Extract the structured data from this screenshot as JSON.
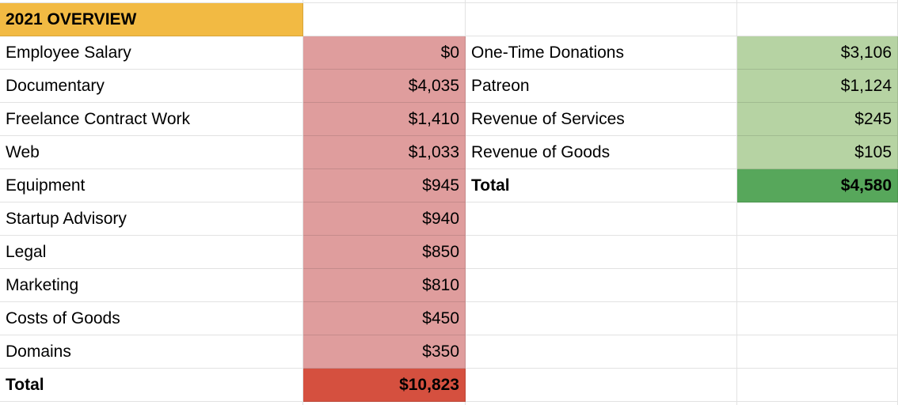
{
  "header": {
    "title": "2021 OVERVIEW"
  },
  "colors": {
    "header_bg": "#F2BA43",
    "expense_bg": "#DF9D9D",
    "expense_total_bg": "#D5503F",
    "income_bg": "#B6D3A3",
    "income_total_bg": "#57A75B",
    "gridline": "#E2E2E2",
    "text": "#000000"
  },
  "expenses": {
    "rows": [
      {
        "label": "Employee Salary",
        "value": "$0"
      },
      {
        "label": "Documentary",
        "value": "$4,035"
      },
      {
        "label": "Freelance Contract Work",
        "value": "$1,410"
      },
      {
        "label": "Web",
        "value": "$1,033"
      },
      {
        "label": "Equipment",
        "value": "$945"
      },
      {
        "label": "Startup Advisory",
        "value": "$940"
      },
      {
        "label": "Legal",
        "value": "$850"
      },
      {
        "label": "Marketing",
        "value": "$810"
      },
      {
        "label": "Costs of Goods",
        "value": "$450"
      },
      {
        "label": "Domains",
        "value": "$350"
      }
    ],
    "total": {
      "label": "Total",
      "value": "$10,823"
    }
  },
  "income": {
    "rows": [
      {
        "label": "One-Time Donations",
        "value": "$3,106"
      },
      {
        "label": "Patreon",
        "value": "$1,124"
      },
      {
        "label": "Revenue of Services",
        "value": "$245"
      },
      {
        "label": "Revenue of Goods",
        "value": "$105"
      }
    ],
    "total": {
      "label": "Total",
      "value": "$4,580"
    }
  }
}
